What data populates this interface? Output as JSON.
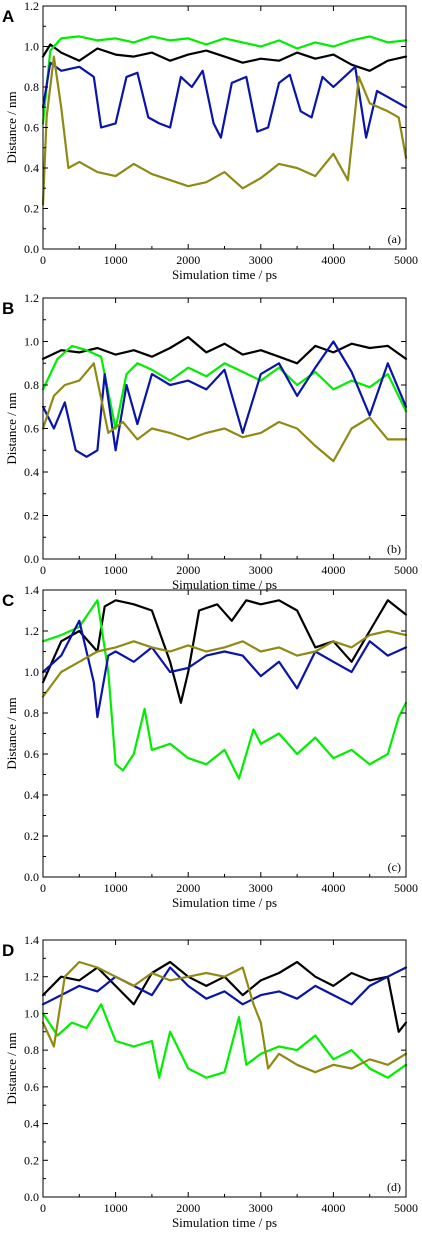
{
  "chart_data": [
    {
      "type": "line",
      "panel": "A",
      "sublabel": "(a)",
      "xlabel": "Simulation time / ps",
      "ylabel": "Distance / nm",
      "xlim": [
        0,
        5000
      ],
      "ylim": [
        0.0,
        1.2
      ],
      "xticks": [
        0,
        1000,
        2000,
        3000,
        4000,
        5000
      ],
      "xtick_labels": [
        "0",
        "1000",
        "2000",
        "3000",
        "4000",
        "5000"
      ],
      "yticks": [
        0.0,
        0.2,
        0.4,
        0.6,
        0.8,
        1.0,
        1.2
      ],
      "ytick_labels": [
        "0.0",
        "0.2",
        "0.4",
        "0.6",
        "0.8",
        "1.0",
        "1.2"
      ],
      "grid": false,
      "series": [
        {
          "color": "#000000",
          "x": [
            0,
            100,
            250,
            500,
            750,
            1000,
            1250,
            1500,
            1750,
            2000,
            2250,
            2500,
            2750,
            3000,
            3250,
            3500,
            3750,
            4000,
            4250,
            4500,
            4750,
            5000
          ],
          "y": [
            0.95,
            1.01,
            0.97,
            0.93,
            0.99,
            0.96,
            0.95,
            0.97,
            0.93,
            0.96,
            0.98,
            0.95,
            0.92,
            0.94,
            0.93,
            0.97,
            0.94,
            0.96,
            0.91,
            0.88,
            0.93,
            0.95
          ]
        },
        {
          "color": "#00ee00",
          "x": [
            0,
            100,
            250,
            500,
            750,
            1000,
            1250,
            1500,
            1750,
            2000,
            2250,
            2500,
            2750,
            3000,
            3250,
            3500,
            3750,
            4000,
            4250,
            4500,
            4750,
            5000
          ],
          "y": [
            0.62,
            0.98,
            1.04,
            1.05,
            1.03,
            1.04,
            1.02,
            1.05,
            1.03,
            1.04,
            1.01,
            1.04,
            1.02,
            1.0,
            1.03,
            0.99,
            1.02,
            1.0,
            1.03,
            1.05,
            1.02,
            1.03
          ]
        },
        {
          "color": "#0a14a8",
          "x": [
            0,
            100,
            250,
            500,
            700,
            800,
            1000,
            1150,
            1300,
            1450,
            1600,
            1750,
            1900,
            2050,
            2200,
            2350,
            2450,
            2600,
            2800,
            2950,
            3100,
            3250,
            3400,
            3550,
            3700,
            3850,
            4000,
            4150,
            4300,
            4450,
            4600,
            4750,
            5000
          ],
          "y": [
            0.7,
            0.92,
            0.88,
            0.9,
            0.85,
            0.6,
            0.62,
            0.85,
            0.87,
            0.65,
            0.62,
            0.6,
            0.85,
            0.8,
            0.88,
            0.62,
            0.55,
            0.82,
            0.85,
            0.58,
            0.6,
            0.82,
            0.86,
            0.68,
            0.65,
            0.85,
            0.8,
            0.85,
            0.9,
            0.55,
            0.78,
            0.75,
            0.7
          ]
        },
        {
          "color": "#8f8a14",
          "x": [
            0,
            50,
            150,
            250,
            350,
            500,
            750,
            1000,
            1250,
            1500,
            1750,
            2000,
            2250,
            2500,
            2750,
            3000,
            3250,
            3500,
            3750,
            4000,
            4200,
            4350,
            4500,
            4750,
            4900,
            5000
          ],
          "y": [
            0.22,
            0.65,
            0.95,
            0.7,
            0.4,
            0.43,
            0.38,
            0.36,
            0.42,
            0.37,
            0.34,
            0.31,
            0.33,
            0.38,
            0.3,
            0.35,
            0.42,
            0.4,
            0.36,
            0.47,
            0.34,
            0.85,
            0.72,
            0.68,
            0.65,
            0.45
          ]
        }
      ]
    },
    {
      "type": "line",
      "panel": "B",
      "sublabel": "(b)",
      "xlabel": "Simulation time / ps",
      "ylabel": "Distance / nm",
      "xlim": [
        0,
        5000
      ],
      "ylim": [
        0.0,
        1.2
      ],
      "xticks": [
        0,
        1000,
        2000,
        3000,
        4000,
        5000
      ],
      "xtick_labels": [
        "0",
        "1000",
        "2000",
        "3000",
        "4000",
        "5000"
      ],
      "yticks": [
        0.0,
        0.2,
        0.4,
        0.6,
        0.8,
        1.0,
        1.2
      ],
      "ytick_labels": [
        "0.0",
        "0.2",
        "0.4",
        "0.6",
        "0.8",
        "1.0",
        "1.2"
      ],
      "grid": false,
      "series": [
        {
          "color": "#000000",
          "x": [
            0,
            250,
            500,
            750,
            1000,
            1250,
            1500,
            1750,
            2000,
            2250,
            2500,
            2750,
            3000,
            3250,
            3500,
            3750,
            4000,
            4250,
            4500,
            4750,
            5000
          ],
          "y": [
            0.92,
            0.96,
            0.95,
            0.97,
            0.94,
            0.96,
            0.93,
            0.97,
            1.02,
            0.95,
            0.99,
            0.94,
            0.96,
            0.93,
            0.9,
            0.98,
            0.95,
            0.99,
            0.97,
            0.98,
            0.92
          ]
        },
        {
          "color": "#00ee00",
          "x": [
            0,
            200,
            400,
            600,
            800,
            1000,
            1150,
            1300,
            1500,
            1750,
            2000,
            2250,
            2500,
            2750,
            3000,
            3250,
            3500,
            3750,
            4000,
            4250,
            4500,
            4750,
            5000
          ],
          "y": [
            0.78,
            0.92,
            0.98,
            0.96,
            0.93,
            0.6,
            0.85,
            0.9,
            0.87,
            0.82,
            0.88,
            0.84,
            0.9,
            0.86,
            0.82,
            0.88,
            0.8,
            0.86,
            0.78,
            0.82,
            0.79,
            0.85,
            0.68
          ]
        },
        {
          "color": "#0a14a8",
          "x": [
            0,
            150,
            300,
            450,
            600,
            750,
            850,
            1000,
            1150,
            1300,
            1500,
            1750,
            2000,
            2250,
            2500,
            2750,
            3000,
            3250,
            3500,
            3750,
            4000,
            4250,
            4500,
            4750,
            5000
          ],
          "y": [
            0.7,
            0.6,
            0.72,
            0.5,
            0.47,
            0.5,
            0.85,
            0.5,
            0.8,
            0.62,
            0.85,
            0.8,
            0.82,
            0.78,
            0.87,
            0.58,
            0.85,
            0.9,
            0.75,
            0.88,
            1.0,
            0.86,
            0.66,
            0.9,
            0.7
          ]
        },
        {
          "color": "#8f8a14",
          "x": [
            0,
            150,
            300,
            500,
            700,
            900,
            1100,
            1300,
            1500,
            1750,
            2000,
            2250,
            2500,
            2750,
            3000,
            3250,
            3500,
            3750,
            4000,
            4250,
            4500,
            4750,
            5000
          ],
          "y": [
            0.6,
            0.75,
            0.8,
            0.82,
            0.9,
            0.58,
            0.63,
            0.55,
            0.6,
            0.58,
            0.55,
            0.58,
            0.6,
            0.56,
            0.58,
            0.63,
            0.6,
            0.52,
            0.45,
            0.6,
            0.65,
            0.55,
            0.55
          ]
        }
      ]
    },
    {
      "type": "line",
      "panel": "C",
      "sublabel": "(c)",
      "xlabel": "Simulation time / ps",
      "ylabel": "Distance / nm",
      "xlim": [
        0,
        5000
      ],
      "ylim": [
        0.0,
        1.4
      ],
      "xticks": [
        0,
        1000,
        2000,
        3000,
        4000,
        5000
      ],
      "xtick_labels": [
        "0",
        "1000",
        "2000",
        "3000",
        "4000",
        "5000"
      ],
      "yticks": [
        0.0,
        0.2,
        0.4,
        0.6,
        0.8,
        1.0,
        1.2,
        1.4
      ],
      "ytick_labels": [
        "0.0",
        "0.2",
        "0.4",
        "0.6",
        "0.8",
        "1.0",
        "1.2",
        "1.4"
      ],
      "grid": false,
      "series": [
        {
          "color": "#000000",
          "x": [
            0,
            250,
            500,
            750,
            850,
            1000,
            1250,
            1500,
            1750,
            1900,
            2000,
            2150,
            2400,
            2600,
            2800,
            3000,
            3250,
            3500,
            3750,
            4000,
            4250,
            4500,
            4750,
            5000
          ],
          "y": [
            0.95,
            1.15,
            1.2,
            1.1,
            1.32,
            1.35,
            1.33,
            1.3,
            1.05,
            0.85,
            1.0,
            1.3,
            1.33,
            1.25,
            1.35,
            1.33,
            1.35,
            1.3,
            1.12,
            1.15,
            1.05,
            1.2,
            1.35,
            1.28
          ]
        },
        {
          "color": "#00ee00",
          "x": [
            0,
            250,
            500,
            750,
            900,
            1000,
            1100,
            1250,
            1400,
            1500,
            1750,
            2000,
            2250,
            2500,
            2700,
            2900,
            3000,
            3250,
            3500,
            3750,
            4000,
            4250,
            4500,
            4750,
            4900,
            5000
          ],
          "y": [
            1.15,
            1.18,
            1.22,
            1.35,
            1.0,
            0.55,
            0.52,
            0.6,
            0.82,
            0.62,
            0.65,
            0.58,
            0.55,
            0.62,
            0.48,
            0.72,
            0.65,
            0.7,
            0.6,
            0.68,
            0.58,
            0.62,
            0.55,
            0.6,
            0.78,
            0.85
          ]
        },
        {
          "color": "#0a14a8",
          "x": [
            0,
            250,
            500,
            700,
            750,
            900,
            1000,
            1250,
            1500,
            1750,
            2000,
            2250,
            2500,
            2750,
            3000,
            3250,
            3500,
            3750,
            4000,
            4250,
            4500,
            4750,
            5000
          ],
          "y": [
            1.0,
            1.08,
            1.25,
            0.95,
            0.78,
            1.08,
            1.1,
            1.05,
            1.12,
            1.0,
            1.02,
            1.08,
            1.1,
            1.08,
            0.98,
            1.05,
            0.92,
            1.1,
            1.05,
            1.0,
            1.15,
            1.08,
            1.12
          ]
        },
        {
          "color": "#8f8a14",
          "x": [
            0,
            250,
            500,
            750,
            1000,
            1250,
            1500,
            1750,
            2000,
            2250,
            2500,
            2750,
            3000,
            3250,
            3500,
            3750,
            4000,
            4250,
            4500,
            4750,
            5000
          ],
          "y": [
            0.88,
            1.0,
            1.05,
            1.1,
            1.12,
            1.15,
            1.12,
            1.1,
            1.13,
            1.1,
            1.12,
            1.15,
            1.1,
            1.12,
            1.08,
            1.1,
            1.15,
            1.12,
            1.18,
            1.2,
            1.18
          ]
        }
      ]
    },
    {
      "type": "line",
      "panel": "D",
      "sublabel": "(d)",
      "xlabel": "Simulation time / ps",
      "ylabel": "Distance / nm",
      "xlim": [
        0,
        5000
      ],
      "ylim": [
        0.0,
        1.4
      ],
      "xticks": [
        0,
        1000,
        2000,
        3000,
        4000,
        5000
      ],
      "xtick_labels": [
        "0",
        "1000",
        "2000",
        "3000",
        "4000",
        "5000"
      ],
      "yticks": [
        0.0,
        0.2,
        0.4,
        0.6,
        0.8,
        1.0,
        1.2,
        1.4
      ],
      "ytick_labels": [
        "0.0",
        "0.2",
        "0.4",
        "0.6",
        "0.8",
        "1.0",
        "1.2",
        "1.4"
      ],
      "grid": false,
      "series": [
        {
          "color": "#000000",
          "x": [
            0,
            250,
            500,
            750,
            1000,
            1250,
            1500,
            1750,
            2000,
            2250,
            2500,
            2750,
            3000,
            3250,
            3500,
            3750,
            4000,
            4250,
            4500,
            4750,
            4900,
            5000
          ],
          "y": [
            1.1,
            1.2,
            1.18,
            1.25,
            1.15,
            1.05,
            1.22,
            1.28,
            1.2,
            1.15,
            1.2,
            1.1,
            1.18,
            1.22,
            1.28,
            1.2,
            1.15,
            1.22,
            1.18,
            1.2,
            0.9,
            0.95
          ]
        },
        {
          "color": "#00ee00",
          "x": [
            0,
            200,
            400,
            600,
            800,
            1000,
            1250,
            1500,
            1600,
            1750,
            2000,
            2250,
            2500,
            2700,
            2800,
            3000,
            3250,
            3500,
            3750,
            4000,
            4250,
            4500,
            4750,
            5000
          ],
          "y": [
            1.0,
            0.88,
            0.95,
            0.92,
            1.05,
            0.85,
            0.82,
            0.85,
            0.65,
            0.9,
            0.7,
            0.65,
            0.68,
            0.98,
            0.72,
            0.78,
            0.82,
            0.8,
            0.88,
            0.75,
            0.8,
            0.7,
            0.65,
            0.72
          ]
        },
        {
          "color": "#0a14a8",
          "x": [
            0,
            250,
            500,
            750,
            1000,
            1250,
            1500,
            1750,
            2000,
            2250,
            2500,
            2750,
            3000,
            3250,
            3500,
            3750,
            4000,
            4250,
            4500,
            4750,
            5000
          ],
          "y": [
            1.05,
            1.1,
            1.15,
            1.12,
            1.2,
            1.15,
            1.1,
            1.25,
            1.15,
            1.08,
            1.12,
            1.05,
            1.1,
            1.12,
            1.08,
            1.15,
            1.1,
            1.05,
            1.15,
            1.2,
            1.25
          ]
        },
        {
          "color": "#8f8a14",
          "x": [
            0,
            150,
            300,
            500,
            750,
            1000,
            1250,
            1500,
            1750,
            2000,
            2250,
            2500,
            2750,
            2900,
            3000,
            3100,
            3250,
            3500,
            3750,
            4000,
            4250,
            4500,
            4750,
            5000
          ],
          "y": [
            0.95,
            0.82,
            1.2,
            1.28,
            1.25,
            1.2,
            1.15,
            1.22,
            1.18,
            1.2,
            1.22,
            1.2,
            1.25,
            1.05,
            0.95,
            0.7,
            0.78,
            0.72,
            0.68,
            0.72,
            0.7,
            0.75,
            0.72,
            0.78
          ]
        }
      ]
    }
  ]
}
